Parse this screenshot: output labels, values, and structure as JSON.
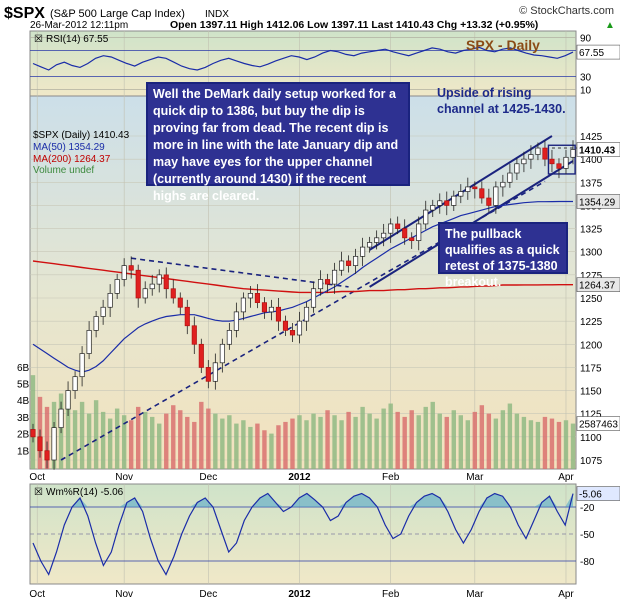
{
  "header": {
    "symbol_title": "$SPX",
    "symbol_desc": "(S&P 500 Large Cap Index)",
    "exchange": "INDX",
    "watermark": "© StockCharts.com",
    "date": "26-Mar-2012 12:11pm",
    "quote": "Open 1397.11  High 1412.06  Low 1397.11  Last 1410.43  Chg +13.32 (+0.95%)",
    "quote_arrow": "▲"
  },
  "chart_title": "SPX - Daily",
  "rsi_panel": {
    "label": "RSI(14) 67.55",
    "levels": [
      "90",
      "70",
      "30",
      "10"
    ],
    "badge": "67.55",
    "series": [
      50,
      45,
      40,
      48,
      52,
      47,
      44,
      50,
      58,
      62,
      60,
      55,
      50,
      46,
      52,
      56,
      60,
      58,
      52,
      46,
      42,
      40,
      44,
      50,
      55,
      58,
      54,
      50,
      47,
      45,
      49,
      54,
      58,
      62,
      60,
      56,
      60,
      66,
      70,
      68,
      64,
      62,
      66,
      68,
      70,
      72,
      68,
      65,
      62,
      66,
      70,
      74,
      72,
      68,
      66,
      70,
      72,
      75,
      70,
      68,
      72,
      74,
      70,
      66,
      63,
      62,
      60,
      58,
      62,
      67.55
    ]
  },
  "legend": {
    "price": "$SPX (Daily) 1410.43",
    "ma50": "MA(50) 1354.29",
    "ma200": "MA(200) 1264.37",
    "volume": "Volume undef"
  },
  "price_axis_labels": [
    "1425",
    "1400",
    "1375",
    "1350",
    "1325",
    "1300",
    "1275",
    "1250",
    "1225",
    "1200",
    "1175",
    "1150",
    "1125",
    "1100",
    "1075"
  ],
  "volume_axis_labels": [
    "6B",
    "5B",
    "4B",
    "3B",
    "2B",
    "1B"
  ],
  "badges": {
    "last": "1410.43",
    "ma50": "1354.29",
    "ma200": "1264.37",
    "volume": "2587463"
  },
  "x_labels": [
    "Oct",
    "Nov",
    "Dec",
    "2012",
    "Feb",
    "Mar",
    "Apr"
  ],
  "annotations": {
    "main": "Well the DeMark daily setup worked for a quick dip to 1386, but buy the dip is proving far from dead. The recent dip is more in line with the late January dip and may have eyes for the upper channel (currently around 1430) if the recent highs are cleared.",
    "channel": "Upside of rising channel at 1425-1430.",
    "pullback": "The pullback qualifies as a quick retest of 1375-1380 breakout."
  },
  "wr_panel": {
    "label": "Wm%R(14) -5.06",
    "levels": [
      "-20",
      "-50",
      "-80"
    ],
    "badge": "-5.06",
    "series": [
      -60,
      -80,
      -95,
      -70,
      -40,
      -20,
      -10,
      -30,
      -60,
      -85,
      -70,
      -40,
      -15,
      -10,
      -25,
      -55,
      -80,
      -95,
      -75,
      -50,
      -30,
      -15,
      -10,
      -20,
      -45,
      -70,
      -60,
      -35,
      -20,
      -10,
      -5,
      -15,
      -25,
      -20,
      -10,
      -5,
      -12,
      -20,
      -35,
      -30,
      -15,
      -8,
      -5,
      -10,
      -20,
      -40,
      -55,
      -50,
      -30,
      -15,
      -8,
      -5,
      -10,
      -25,
      -45,
      -60,
      -45,
      -25,
      -10,
      -5,
      -8,
      -20,
      -40,
      -55,
      -35,
      -15,
      -8,
      -25,
      -40,
      -5.06
    ]
  },
  "chart_data": {
    "type": "line",
    "title": "SPX - Daily",
    "xlabel": "",
    "ylabel": "",
    "x_ticks": [
      "Oct",
      "Nov",
      "Dec",
      "2012",
      "Feb",
      "Mar",
      "Apr"
    ],
    "ylim": [
      1065,
      1440
    ],
    "series": [
      {
        "name": "$SPX (Daily) 1410.43",
        "values": [
          1100,
          1085,
          1075,
          1110,
          1130,
          1150,
          1165,
          1190,
          1215,
          1230,
          1240,
          1255,
          1270,
          1285,
          1280,
          1250,
          1260,
          1265,
          1275,
          1260,
          1250,
          1240,
          1220,
          1200,
          1175,
          1160,
          1180,
          1200,
          1215,
          1235,
          1250,
          1255,
          1245,
          1235,
          1240,
          1225,
          1215,
          1210,
          1225,
          1240,
          1260,
          1270,
          1265,
          1280,
          1290,
          1285,
          1295,
          1305,
          1310,
          1315,
          1320,
          1330,
          1325,
          1315,
          1312,
          1330,
          1345,
          1350,
          1355,
          1350,
          1360,
          1365,
          1370,
          1368,
          1358,
          1350,
          1370,
          1375,
          1385,
          1395,
          1400,
          1405,
          1412,
          1400,
          1395,
          1390,
          1402,
          1410.43
        ]
      },
      {
        "name": "MA(50) 1354.29",
        "values": [
          1200,
          1195,
          1190,
          1185,
          1180,
          1175,
          1172,
          1170,
          1172,
          1176,
          1182,
          1190,
          1198,
          1206,
          1212,
          1218,
          1222,
          1225,
          1228,
          1230,
          1231,
          1232,
          1232,
          1232,
          1230,
          1228,
          1226,
          1225,
          1225,
          1226,
          1228,
          1230,
          1232,
          1234,
          1235,
          1236,
          1238,
          1240,
          1243,
          1246,
          1250,
          1254,
          1258,
          1262,
          1267,
          1272,
          1277,
          1283,
          1288,
          1293,
          1298,
          1303,
          1307,
          1311,
          1315,
          1319,
          1323,
          1327,
          1330,
          1333,
          1336,
          1339,
          1341,
          1343,
          1345,
          1347,
          1349,
          1350,
          1351,
          1352,
          1353,
          1353.5,
          1354,
          1354,
          1354.1,
          1354.2,
          1354.25,
          1354.29
        ]
      },
      {
        "name": "MA(200) 1264.37",
        "values": [
          1290,
          1289,
          1288,
          1287,
          1286,
          1285,
          1284,
          1283,
          1282,
          1281,
          1280,
          1279,
          1278,
          1277,
          1276,
          1275,
          1274,
          1273,
          1272,
          1271,
          1270,
          1269,
          1268,
          1267,
          1266,
          1265,
          1264,
          1263,
          1262,
          1261,
          1260,
          1259.5,
          1259,
          1258.5,
          1258,
          1257.5,
          1257,
          1256.5,
          1256,
          1256,
          1256,
          1256,
          1256,
          1256.5,
          1257,
          1257,
          1257,
          1257.5,
          1258,
          1258,
          1258,
          1258.5,
          1259,
          1259,
          1259.5,
          1260,
          1260,
          1260.5,
          1261,
          1261,
          1261.5,
          1262,
          1262,
          1262.5,
          1263,
          1263,
          1263.5,
          1264,
          1264,
          1264,
          1264.1,
          1264.2,
          1264.2,
          1264.3,
          1264.3,
          1264.35,
          1264.36,
          1264.37
        ]
      }
    ],
    "volume": [
      5.5,
      4.2,
      3.6,
      3.9,
      4.4,
      3.8,
      3.4,
      3.9,
      3.2,
      4.0,
      3.3,
      2.9,
      3.5,
      3.1,
      2.8,
      3.6,
      3.3,
      3.0,
      2.6,
      3.2,
      3.7,
      3.4,
      3.0,
      2.7,
      3.9,
      3.5,
      3.2,
      2.9,
      3.1,
      2.6,
      2.8,
      2.4,
      2.6,
      2.2,
      2.0,
      2.5,
      2.7,
      2.9,
      3.1,
      2.8,
      3.2,
      3.0,
      3.4,
      3.1,
      2.8,
      3.3,
      3.0,
      3.6,
      3.2,
      2.9,
      3.5,
      3.8,
      3.3,
      3.0,
      3.4,
      3.1,
      3.6,
      3.9,
      3.2,
      3.0,
      3.4,
      3.1,
      2.8,
      3.3,
      3.7,
      3.2,
      2.9,
      3.4,
      3.8,
      3.2,
      3.0,
      2.8,
      2.7,
      3.0,
      2.9,
      2.7,
      2.8,
      2.6
    ],
    "volume_unit": "billions",
    "grid": true,
    "legend": "top-left"
  }
}
